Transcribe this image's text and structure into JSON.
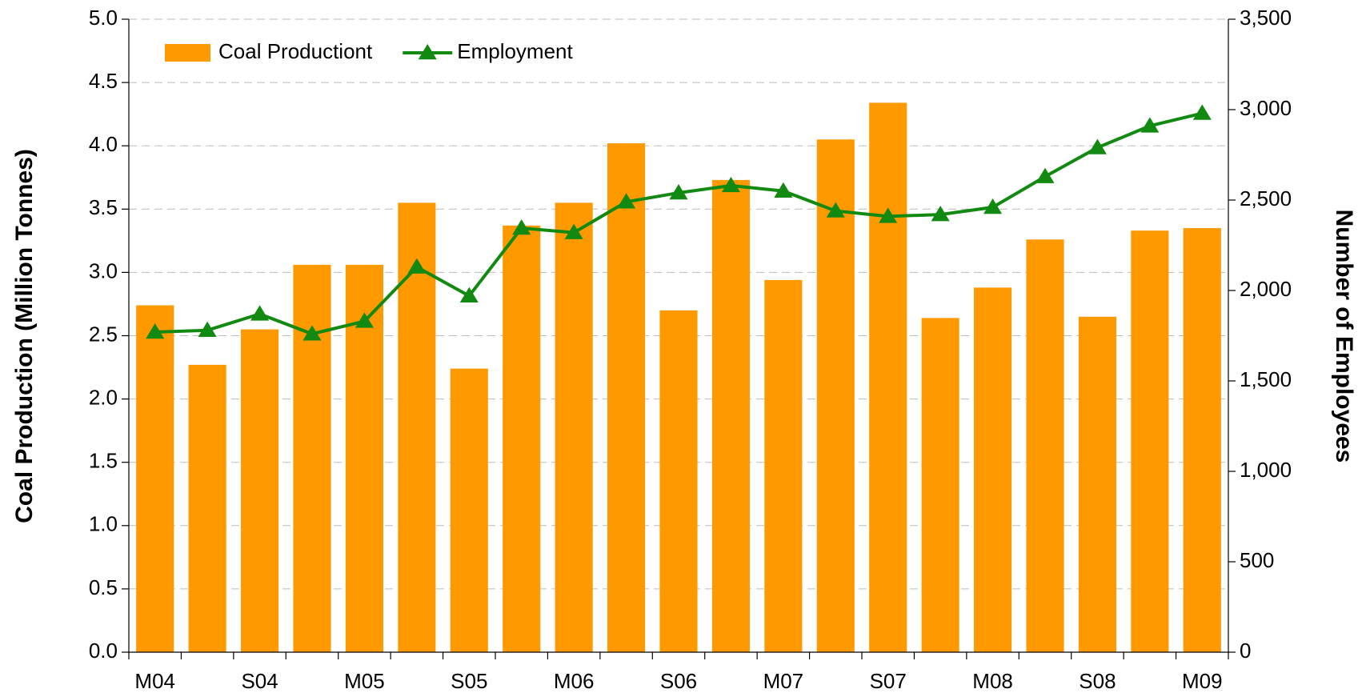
{
  "chart_data": {
    "type": "bar-line",
    "y_label": "Coal Production (Million Tonnes)",
    "y2_label": "Number of Employees",
    "categories": [
      "M04",
      null,
      "S04",
      null,
      "M05",
      null,
      "S05",
      null,
      "M06",
      null,
      "S06",
      null,
      "M07",
      null,
      "S07",
      null,
      "M08",
      null,
      "S08",
      null,
      "M09"
    ],
    "series": [
      {
        "name": "Coal Productiont",
        "type": "bar",
        "color": "#ff9900",
        "values": [
          2.74,
          2.27,
          2.55,
          3.06,
          3.06,
          3.55,
          2.24,
          3.37,
          3.55,
          4.02,
          2.7,
          3.73,
          2.94,
          4.05,
          4.34,
          2.64,
          2.88,
          3.26,
          2.65,
          3.33,
          3.35
        ]
      },
      {
        "name": "Employment",
        "type": "line",
        "axis": "y2",
        "color": "#128a12",
        "values": [
          1770,
          1780,
          1870,
          1760,
          1830,
          2130,
          1970,
          2345,
          2320,
          2490,
          2540,
          2580,
          2550,
          2440,
          2410,
          2420,
          2460,
          2630,
          2790,
          2910,
          2980
        ]
      }
    ],
    "ylim": [
      0,
      5
    ],
    "yticks": [
      {
        "value": 0,
        "label": "0.0"
      },
      {
        "value": 0.5,
        "label": "0.5"
      },
      {
        "value": 1,
        "label": "1.0"
      },
      {
        "value": 1.5,
        "label": "1.5"
      },
      {
        "value": 2,
        "label": "2.0"
      },
      {
        "value": 2.5,
        "label": "2.5"
      },
      {
        "value": 3,
        "label": "3.0"
      },
      {
        "value": 3.5,
        "label": "3.5"
      },
      {
        "value": 4,
        "label": "4.0"
      },
      {
        "value": 4.5,
        "label": "4.5"
      },
      {
        "value": 5,
        "label": "5.0"
      }
    ],
    "y2lim": [
      0,
      3500
    ],
    "y2ticks": [
      0,
      500,
      {
        "value": 1000,
        "label": "1,000"
      },
      {
        "value": 1500,
        "label": "1,500"
      },
      {
        "value": 2000,
        "label": "2,000"
      },
      {
        "value": 2500,
        "label": "2,500"
      },
      {
        "value": 3000,
        "label": "3,000"
      },
      {
        "value": 3500,
        "label": "3,500"
      }
    ],
    "grid": true,
    "legend": "top-left"
  }
}
